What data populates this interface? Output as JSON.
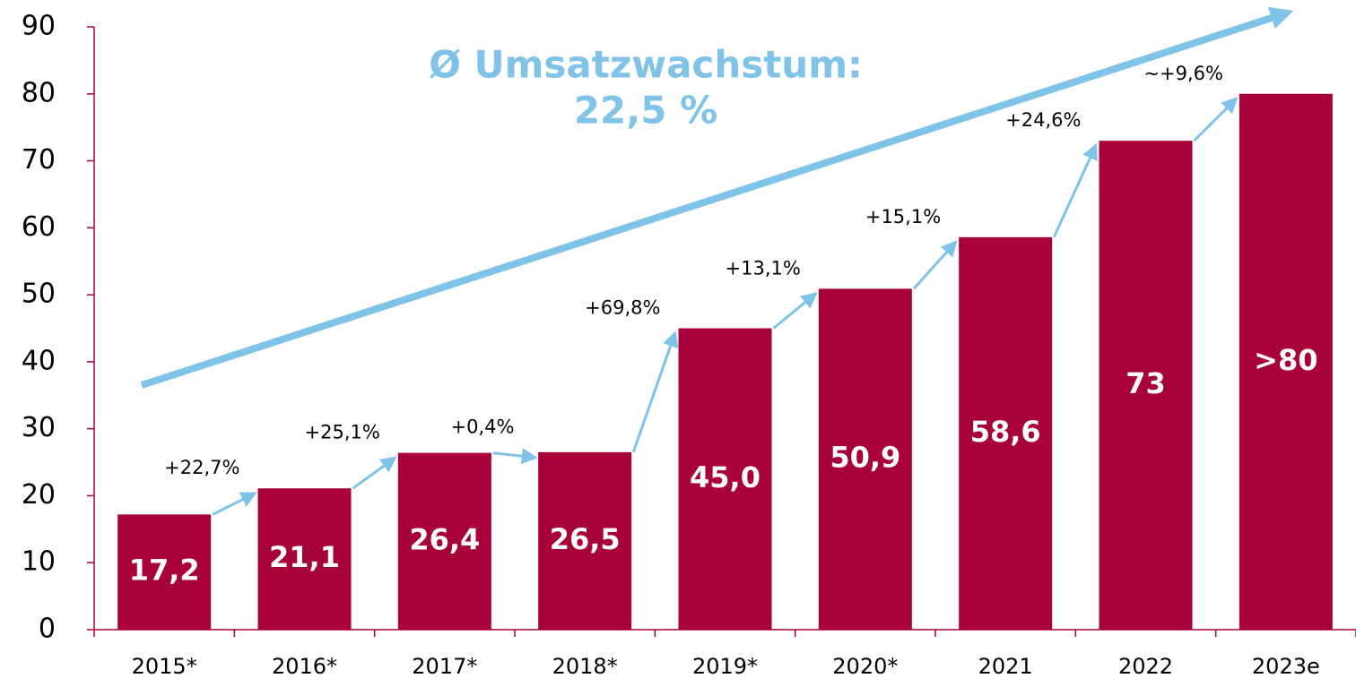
{
  "chart_data": {
    "type": "bar",
    "highlight": [
      "Ø Umsatzwachstum:",
      "22,5 %"
    ],
    "categories": [
      "2015*",
      "2016*",
      "2017*",
      "2018*",
      "2019*",
      "2020*",
      "2021",
      "2022",
      "2023e"
    ],
    "values": [
      17.2,
      21.1,
      26.4,
      26.5,
      45.0,
      50.9,
      58.6,
      73,
      80
    ],
    "value_labels": [
      "17,2",
      "21,1",
      "26,4",
      "26,5",
      "45,0",
      "50,9",
      "58,6",
      "73",
      ">80"
    ],
    "growth_labels": [
      "+22,7%",
      "+25,1%",
      "+0,4%",
      "+69,8%",
      "+13,1%",
      "+15,1%",
      "+24,6%",
      "~+9,6%"
    ],
    "color": "#a8003a",
    "ylim": [
      0,
      90
    ],
    "yticks": [
      0,
      10,
      20,
      30,
      40,
      50,
      60,
      70,
      80,
      90
    ],
    "grid": false
  }
}
